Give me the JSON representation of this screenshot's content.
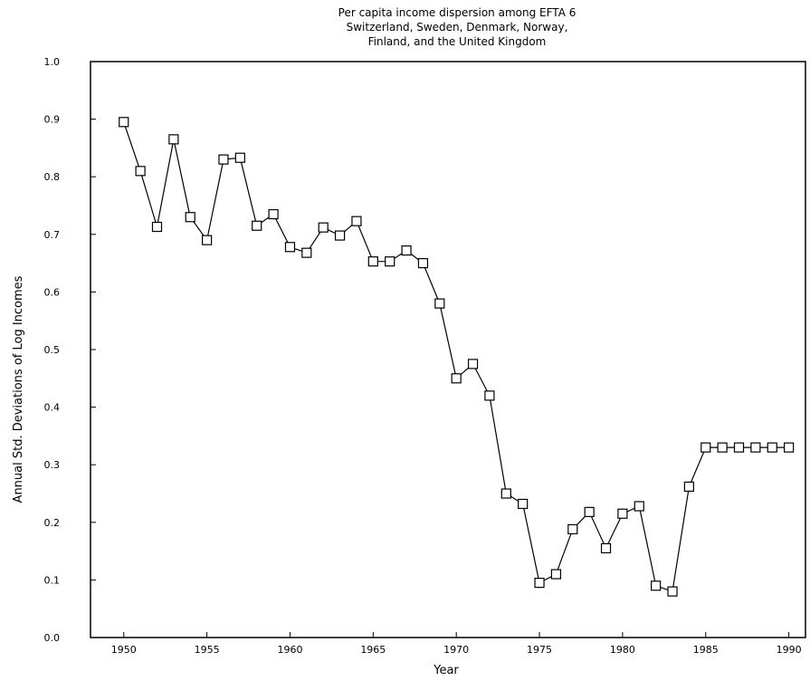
{
  "chart_data": {
    "type": "line",
    "title": [
      "Per capita income dispersion among EFTA 6",
      "Switzerland, Sweden, Denmark, Norway,",
      "Finland, and the United Kingdom"
    ],
    "xlabel": "Year",
    "ylabel": "Annual Std. Deviations of Log Incomes",
    "xlim": [
      1948,
      1991
    ],
    "ylim": [
      0.0,
      1.0
    ],
    "x_ticks": [
      {
        "value": 1950,
        "label": "1950"
      },
      {
        "value": 1955,
        "label": "1955"
      },
      {
        "value": 1960,
        "label": "1960"
      },
      {
        "value": 1965,
        "label": "1965"
      },
      {
        "value": 1970,
        "label": "1970"
      },
      {
        "value": 1975,
        "label": "1975"
      },
      {
        "value": 1980,
        "label": "1980"
      },
      {
        "value": 1985,
        "label": "1985"
      },
      {
        "value": 1990,
        "label": "1990"
      }
    ],
    "y_ticks": [
      {
        "value": 0.0,
        "label": "0.0"
      },
      {
        "value": 0.1,
        "label": "0.1"
      },
      {
        "value": 0.2,
        "label": "0.2"
      },
      {
        "value": 0.3,
        "label": "0.3"
      },
      {
        "value": 0.4,
        "label": "0.4"
      },
      {
        "value": 0.5,
        "label": "0.5"
      },
      {
        "value": 0.6,
        "label": "0.6"
      },
      {
        "value": 0.7,
        "label": "0.7"
      },
      {
        "value": 0.8,
        "label": "0.8"
      },
      {
        "value": 0.9,
        "label": "0.9"
      },
      {
        "value": 1.0,
        "label": "1.0"
      }
    ],
    "marker": "square",
    "grid": false,
    "series": [
      {
        "x": [
          1950,
          1951,
          1952,
          1953,
          1954,
          1955,
          1956,
          1957,
          1958,
          1959,
          1960,
          1961,
          1962,
          1963,
          1964,
          1965,
          1966,
          1967,
          1968,
          1969,
          1970,
          1971,
          1972,
          1973,
          1974,
          1975,
          1976,
          1977,
          1978,
          1979,
          1980,
          1981,
          1982,
          1983,
          1984,
          1985,
          1986,
          1987,
          1988,
          1989,
          1990
        ],
        "y": [
          0.895,
          0.81,
          0.713,
          0.865,
          0.73,
          0.69,
          0.83,
          0.833,
          0.715,
          0.735,
          0.678,
          0.668,
          0.712,
          0.698,
          0.723,
          0.653,
          0.653,
          0.672,
          0.65,
          0.58,
          0.45,
          0.475,
          0.42,
          0.25,
          0.232,
          0.095,
          0.11,
          0.188,
          0.218,
          0.155,
          0.215,
          0.228,
          0.09,
          0.08,
          0.262,
          0.33,
          0.33,
          0.33,
          0.33,
          0.33,
          0.33
        ]
      }
    ]
  }
}
